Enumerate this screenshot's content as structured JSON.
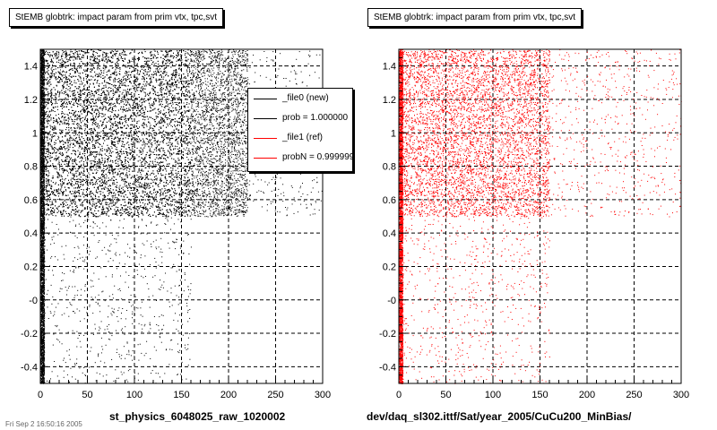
{
  "footer_text": "Fri Sep  2 16:50:16 2005",
  "chart_data": [
    {
      "type": "scatter",
      "title": "StEMB globtrk: impact param from prim vtx, tpc,svt",
      "xlabel": "st_physics_6048025_raw_1020002",
      "ylabel": "",
      "xlim": [
        0,
        300
      ],
      "ylim": [
        -0.5,
        1.5
      ],
      "xticks": [
        "0",
        "50",
        "100",
        "150",
        "200",
        "250",
        "300"
      ],
      "yticks": [
        "-0.4",
        "-0.2",
        "-0",
        "0.2",
        "0.4",
        "0.6",
        "0.8",
        "1",
        "1.2",
        "1.4"
      ],
      "grid": true,
      "marker_color": "#000000",
      "legend": {
        "position": "top-right",
        "entries": [
          {
            "label": "_file0 (new)",
            "color": "#000000"
          },
          {
            "label": "prob = 1.000000",
            "color": "#000000"
          },
          {
            "label": "_file1 (ref)",
            "color": "#ff0000"
          },
          {
            "label": "probN = 0.999999",
            "color": "#ff0000"
          }
        ]
      },
      "density_regions": [
        {
          "x": [
            0,
            4
          ],
          "y": [
            -0.5,
            1.5
          ],
          "level": "saturated"
        },
        {
          "x": [
            4,
            160
          ],
          "y": [
            0.5,
            1.5
          ],
          "level": "high"
        },
        {
          "x": [
            160,
            220
          ],
          "y": [
            0.5,
            1.5
          ],
          "level": "medium"
        },
        {
          "x": [
            220,
            300
          ],
          "y": [
            0.5,
            1.5
          ],
          "level": "sparse"
        },
        {
          "x": [
            4,
            160
          ],
          "y": [
            -0.5,
            0.5
          ],
          "level": "sparse"
        }
      ]
    },
    {
      "type": "scatter",
      "title": "StEMB globtrk: impact param from prim vtx, tpc,svt",
      "xlabel": "dev/daq_sl302.ittf/Sat/year_2005/CuCu200_MinBias/",
      "ylabel": "",
      "xlim": [
        0,
        300
      ],
      "ylim": [
        -0.5,
        1.5
      ],
      "xticks": [
        "0",
        "50",
        "100",
        "150",
        "200",
        "250",
        "300"
      ],
      "yticks": [
        "-0.4",
        "-0.2",
        "-0",
        "0.2",
        "0.4",
        "0.6",
        "0.8",
        "1",
        "1.2",
        "1.4"
      ],
      "grid": true,
      "marker_color": "#ff0000",
      "density_regions": [
        {
          "x": [
            0,
            4
          ],
          "y": [
            -0.5,
            1.5
          ],
          "level": "saturated"
        },
        {
          "x": [
            4,
            160
          ],
          "y": [
            0.5,
            1.5
          ],
          "level": "medium"
        },
        {
          "x": [
            160,
            220
          ],
          "y": [
            0.5,
            1.5
          ],
          "level": "sparse"
        },
        {
          "x": [
            220,
            300
          ],
          "y": [
            0.5,
            1.5
          ],
          "level": "sparse"
        },
        {
          "x": [
            4,
            160
          ],
          "y": [
            -0.5,
            0.5
          ],
          "level": "sparse"
        }
      ]
    }
  ]
}
